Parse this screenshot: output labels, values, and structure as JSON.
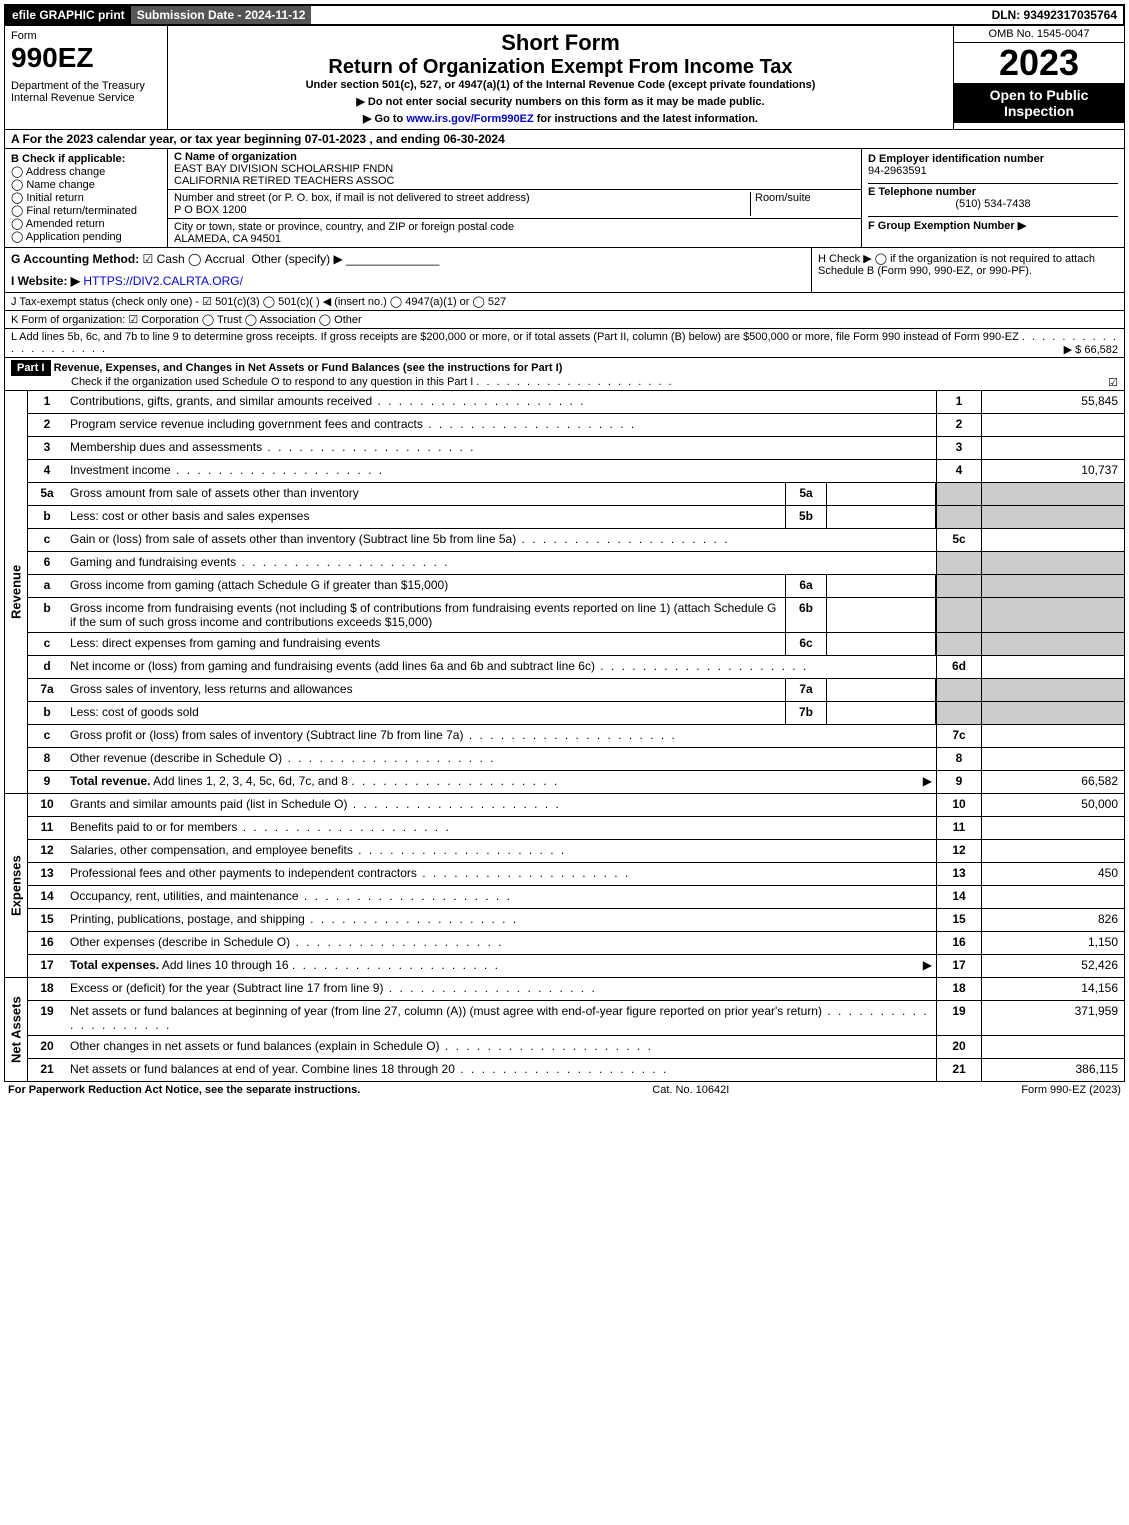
{
  "top": {
    "efile": "efile GRAPHIC print",
    "submission": "Submission Date - 2024-11-12",
    "dln": "DLN: 93492317035764"
  },
  "header": {
    "form_label": "Form",
    "form_no": "990EZ",
    "dept": "Department of the Treasury\nInternal Revenue Service",
    "short_form": "Short Form",
    "title": "Return of Organization Exempt From Income Tax",
    "subtitle": "Under section 501(c), 527, or 4947(a)(1) of the Internal Revenue Code (except private foundations)",
    "instr1": "▶ Do not enter social security numbers on this form as it may be made public.",
    "instr2_pre": "▶ Go to ",
    "instr2_link": "www.irs.gov/Form990EZ",
    "instr2_post": " for instructions and the latest information.",
    "omb": "OMB No. 1545-0047",
    "year": "2023",
    "open": "Open to Public Inspection"
  },
  "A": "A  For the 2023 calendar year, or tax year beginning 07-01-2023 , and ending 06-30-2024",
  "B": {
    "label": "B  Check if applicable:",
    "opts": [
      "Address change",
      "Name change",
      "Initial return",
      "Final return/terminated",
      "Amended return",
      "Application pending"
    ]
  },
  "C": {
    "name_label": "C Name of organization",
    "name1": "EAST BAY DIVISION SCHOLARSHIP FNDN",
    "name2": "CALIFORNIA RETIRED TEACHERS ASSOC",
    "street_label": "Number and street (or P. O. box, if mail is not delivered to street address)",
    "room_label": "Room/suite",
    "street": "P O BOX 1200",
    "city_label": "City or town, state or province, country, and ZIP or foreign postal code",
    "city": "ALAMEDA, CA  94501"
  },
  "D": {
    "label": "D Employer identification number",
    "value": "94-2963591"
  },
  "E": {
    "label": "E Telephone number",
    "value": "(510) 534-7438"
  },
  "F": {
    "label": "F Group Exemption Number  ▶"
  },
  "G": {
    "label": "G Accounting Method:",
    "cash": "Cash",
    "accrual": "Accrual",
    "other": "Other (specify) ▶"
  },
  "H": {
    "text": "H  Check ▶  ◯  if the organization is not required to attach Schedule B (Form 990, 990-EZ, or 990-PF)."
  },
  "I": {
    "label": "I Website: ▶",
    "value": "HTTPS://DIV2.CALRTA.ORG/"
  },
  "J": "J Tax-exempt status (check only one) - ☑ 501(c)(3)  ◯ 501(c)(  ) ◀ (insert no.)  ◯ 4947(a)(1) or  ◯ 527",
  "K": "K Form of organization:  ☑ Corporation  ◯ Trust  ◯ Association  ◯ Other",
  "L": {
    "text": "L Add lines 5b, 6c, and 7b to line 9 to determine gross receipts. If gross receipts are $200,000 or more, or if total assets (Part II, column (B) below) are $500,000 or more, file Form 990 instead of Form 990-EZ",
    "amount": "▶ $ 66,582"
  },
  "part1": {
    "hdr": "Part I",
    "title": "Revenue, Expenses, and Changes in Net Assets or Fund Balances (see the instructions for Part I)",
    "check": "Check if the organization used Schedule O to respond to any question in this Part I",
    "checkmark": "☑"
  },
  "sections": {
    "revenue": "Revenue",
    "expenses": "Expenses",
    "netassets": "Net Assets"
  },
  "rows": [
    {
      "n": "1",
      "d": "Contributions, gifts, grants, and similar amounts received",
      "ln": "1",
      "v": "55,845"
    },
    {
      "n": "2",
      "d": "Program service revenue including government fees and contracts",
      "ln": "2",
      "v": ""
    },
    {
      "n": "3",
      "d": "Membership dues and assessments",
      "ln": "3",
      "v": ""
    },
    {
      "n": "4",
      "d": "Investment income",
      "ln": "4",
      "v": "10,737"
    },
    {
      "n": "5a",
      "d": "Gross amount from sale of assets other than inventory",
      "sub": "5a",
      "subv": ""
    },
    {
      "n": "b",
      "d": "Less: cost or other basis and sales expenses",
      "sub": "5b",
      "subv": ""
    },
    {
      "n": "c",
      "d": "Gain or (loss) from sale of assets other than inventory (Subtract line 5b from line 5a)",
      "ln": "5c",
      "v": ""
    },
    {
      "n": "6",
      "d": "Gaming and fundraising events"
    },
    {
      "n": "a",
      "d": "Gross income from gaming (attach Schedule G if greater than $15,000)",
      "sub": "6a",
      "subv": ""
    },
    {
      "n": "b",
      "d": "Gross income from fundraising events (not including $                   of contributions from fundraising events reported on line 1) (attach Schedule G if the sum of such gross income and contributions exceeds $15,000)",
      "sub": "6b",
      "subv": ""
    },
    {
      "n": "c",
      "d": "Less: direct expenses from gaming and fundraising events",
      "sub": "6c",
      "subv": ""
    },
    {
      "n": "d",
      "d": "Net income or (loss) from gaming and fundraising events (add lines 6a and 6b and subtract line 6c)",
      "ln": "6d",
      "v": ""
    },
    {
      "n": "7a",
      "d": "Gross sales of inventory, less returns and allowances",
      "sub": "7a",
      "subv": ""
    },
    {
      "n": "b",
      "d": "Less: cost of goods sold",
      "sub": "7b",
      "subv": ""
    },
    {
      "n": "c",
      "d": "Gross profit or (loss) from sales of inventory (Subtract line 7b from line 7a)",
      "ln": "7c",
      "v": ""
    },
    {
      "n": "8",
      "d": "Other revenue (describe in Schedule O)",
      "ln": "8",
      "v": ""
    },
    {
      "n": "9",
      "d": "Total revenue. Add lines 1, 2, 3, 4, 5c, 6d, 7c, and 8",
      "ln": "9",
      "v": "66,582",
      "bold": true,
      "arrow": true
    }
  ],
  "exp_rows": [
    {
      "n": "10",
      "d": "Grants and similar amounts paid (list in Schedule O)",
      "ln": "10",
      "v": "50,000"
    },
    {
      "n": "11",
      "d": "Benefits paid to or for members",
      "ln": "11",
      "v": ""
    },
    {
      "n": "12",
      "d": "Salaries, other compensation, and employee benefits",
      "ln": "12",
      "v": ""
    },
    {
      "n": "13",
      "d": "Professional fees and other payments to independent contractors",
      "ln": "13",
      "v": "450"
    },
    {
      "n": "14",
      "d": "Occupancy, rent, utilities, and maintenance",
      "ln": "14",
      "v": ""
    },
    {
      "n": "15",
      "d": "Printing, publications, postage, and shipping",
      "ln": "15",
      "v": "826"
    },
    {
      "n": "16",
      "d": "Other expenses (describe in Schedule O)",
      "ln": "16",
      "v": "1,150"
    },
    {
      "n": "17",
      "d": "Total expenses. Add lines 10 through 16",
      "ln": "17",
      "v": "52,426",
      "bold": true,
      "arrow": true
    }
  ],
  "na_rows": [
    {
      "n": "18",
      "d": "Excess or (deficit) for the year (Subtract line 17 from line 9)",
      "ln": "18",
      "v": "14,156"
    },
    {
      "n": "19",
      "d": "Net assets or fund balances at beginning of year (from line 27, column (A)) (must agree with end-of-year figure reported on prior year's return)",
      "ln": "19",
      "v": "371,959"
    },
    {
      "n": "20",
      "d": "Other changes in net assets or fund balances (explain in Schedule O)",
      "ln": "20",
      "v": ""
    },
    {
      "n": "21",
      "d": "Net assets or fund balances at end of year. Combine lines 18 through 20",
      "ln": "21",
      "v": "386,115"
    }
  ],
  "footer": {
    "left": "For Paperwork Reduction Act Notice, see the separate instructions.",
    "mid": "Cat. No. 10642I",
    "right": "Form 990-EZ (2023)"
  }
}
